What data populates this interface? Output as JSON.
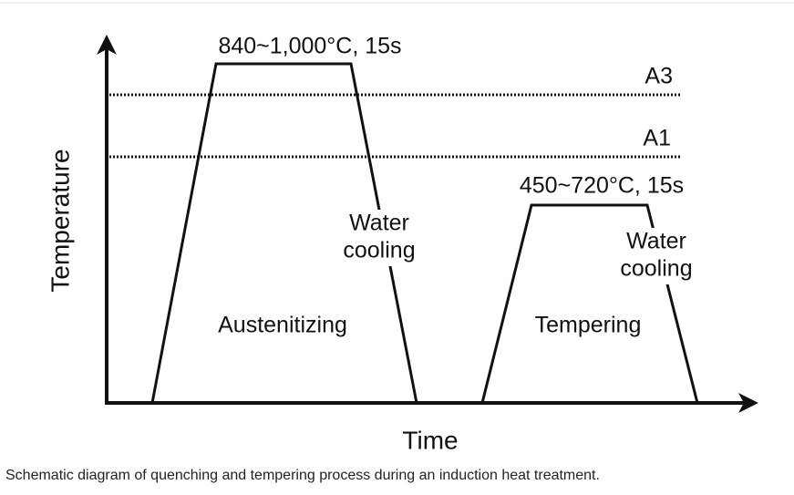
{
  "axes": {
    "y_label": "Temperature",
    "x_label": "Time"
  },
  "reference_lines": [
    {
      "label": "A3"
    },
    {
      "label": "A1"
    }
  ],
  "stages": [
    {
      "peak_label": "840~1,000°C, 15s",
      "name": "Austenitizing",
      "cooling": [
        "Water",
        "cooling"
      ]
    },
    {
      "peak_label": "450~720°C, 15s",
      "name": "Tempering",
      "cooling": [
        "Water",
        "cooling"
      ]
    }
  ],
  "caption": "Schematic diagram of quenching and tempering process during an induction heat treatment."
}
